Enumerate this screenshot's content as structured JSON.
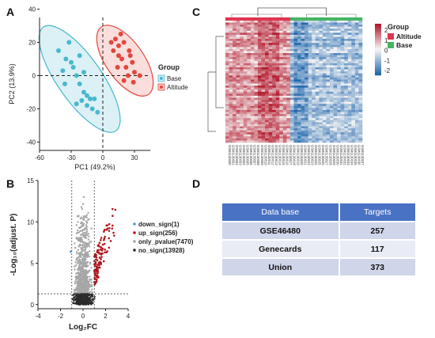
{
  "panels": {
    "a": {
      "letter": "A",
      "chart_data": {
        "type": "scatter",
        "xlabel": "PC1 (49.2%)",
        "ylabel": "PC2 (13.9%)",
        "xlim": [
          -60,
          45
        ],
        "ylim": [
          -45,
          35
        ],
        "xticks": [
          "-60",
          "-30",
          "0",
          "30"
        ],
        "yticks": [
          "40",
          "20",
          "0",
          "-20",
          "-40"
        ],
        "legend_title": "Group",
        "legend_position": "right",
        "series": [
          {
            "name": "Base",
            "color": "#4ab7cf",
            "points": [
              [
                -42,
                15
              ],
              [
                -35,
                10
              ],
              [
                -32,
                20
              ],
              [
                -28,
                5
              ],
              [
                -25,
                0
              ],
              [
                -38,
                3
              ],
              [
                -22,
                -5
              ],
              [
                -18,
                -10
              ],
              [
                -15,
                -12
              ],
              [
                -20,
                -15
              ],
              [
                -12,
                -14
              ],
              [
                -10,
                -20
              ],
              [
                -8,
                -14
              ],
              [
                -25,
                -17
              ],
              [
                -30,
                8
              ],
              [
                -5,
                -22
              ],
              [
                -15,
                -18
              ],
              [
                -22,
                12
              ],
              [
                -36,
                -5
              ],
              [
                -18,
                2
              ]
            ]
          },
          {
            "name": "Altitude",
            "color": "#e0473d",
            "points": [
              [
                12,
                22
              ],
              [
                15,
                18
              ],
              [
                20,
                20
              ],
              [
                25,
                15
              ],
              [
                18,
                10
              ],
              [
                22,
                5
              ],
              [
                28,
                8
              ],
              [
                30,
                2
              ],
              [
                15,
                12
              ],
              [
                24,
                0
              ],
              [
                20,
                -3
              ],
              [
                10,
                15
              ],
              [
                26,
                12
              ],
              [
                14,
                5
              ],
              [
                35,
                0
              ],
              [
                17,
                25
              ],
              [
                8,
                20
              ],
              [
                29,
                -4
              ]
            ]
          }
        ]
      }
    },
    "b": {
      "letter": "B",
      "chart_data": {
        "type": "scatter",
        "xlabel": "Log₂FC",
        "ylabel": "-Log₁₀(adjust. P)",
        "xlim": [
          -4,
          4
        ],
        "ylim": [
          -0.5,
          15
        ],
        "xticks": [
          "-4",
          "-2",
          "0",
          "2",
          "4"
        ],
        "yticks": [
          "15",
          "10",
          "5",
          "0"
        ],
        "thresholds": {
          "fc": [
            -1,
            1
          ],
          "p": 1.3
        },
        "series": [
          {
            "name": "down_sign(1)",
            "color": "#4aa0d8"
          },
          {
            "name": "up_sign(256)",
            "color": "#b3141c"
          },
          {
            "name": "only_pvalue(7470)",
            "color": "#a6a6a6"
          },
          {
            "name": "no_sign(13928)",
            "color": "#2b2b2b"
          }
        ]
      }
    },
    "c": {
      "letter": "C",
      "chart_data": {
        "type": "heatmap",
        "legend_title": "Group",
        "legend": [
          {
            "name": "Altitude",
            "color": "#e0344f"
          },
          {
            "name": "Base",
            "color": "#45b562"
          }
        ],
        "scale_ticks": [
          "2",
          "1",
          "0",
          "-1",
          "-2"
        ],
        "colors": {
          "high": "#b2182b",
          "mid": "#f7f7f7",
          "low": "#2166ac"
        },
        "columns": [
          "GSM1130600",
          "GSM1130601",
          "GSM1130602",
          "GSM1130603",
          "GSM1130604",
          "GSM1130605",
          "GSM1130606",
          "GSM1130607",
          "GSM1130608",
          "GSM1130609",
          "GSM1130610",
          "GSM1130611",
          "GSM1130612",
          "GSM1130613",
          "GSM1130614",
          "GSM1130615",
          "GSM1130616",
          "GSM1130617",
          "GSM1130618",
          "GSM1130619",
          "GSM1130620",
          "GSM1130621",
          "GSM1130622",
          "GSM1130623",
          "GSM1130624",
          "GSM1130625",
          "GSM1130626",
          "GSM1130627",
          "GSM1130628",
          "GSM1130629",
          "GSM1130630",
          "GSM1130631",
          "GSM1130632",
          "GSM1130633",
          "GSM1130634",
          "GSM1130635",
          "GSM1130636",
          "GSM1130637"
        ],
        "altitude_columns": 18
      }
    },
    "d": {
      "letter": "D",
      "chart_data": {
        "type": "table",
        "headers": [
          "Data base",
          "Targets"
        ],
        "rows": [
          [
            "GSE46480",
            "257"
          ],
          [
            "Genecards",
            "117"
          ],
          [
            "Union",
            "373"
          ]
        ]
      }
    }
  }
}
